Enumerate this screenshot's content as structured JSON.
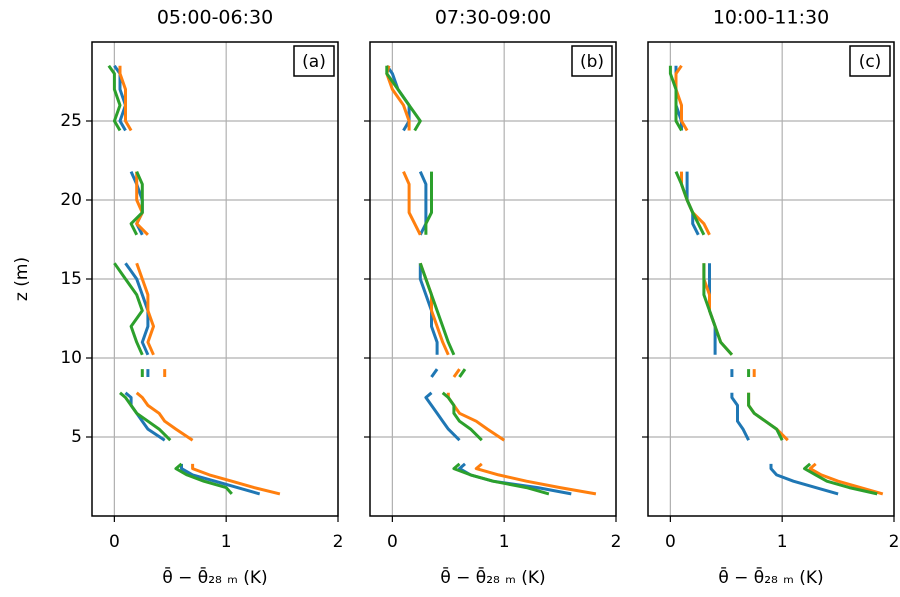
{
  "chart_data": [
    {
      "type": "line",
      "title": "05:00-06:30",
      "panel_label": "(a)",
      "xlabel": "θ̄ − θ̄₂₈ ₘ (K)",
      "ylabel": "z (m)",
      "xlim": [
        -0.2,
        2
      ],
      "xticks": [
        0,
        1,
        2
      ],
      "ylim": [
        0,
        30
      ],
      "yticks": [
        5,
        10,
        15,
        20,
        25
      ],
      "grid": true,
      "y": [
        1.4,
        1.8,
        2.2,
        2.6,
        3.0,
        3.3,
        null,
        4.8,
        5.5,
        6.0,
        6.5,
        7.0,
        7.5,
        7.8,
        null,
        8.8,
        9.3,
        null,
        10.2,
        11,
        12,
        13,
        14,
        15,
        16,
        null,
        17.8,
        18.5,
        19.2,
        20,
        21,
        21.8,
        null,
        24.4,
        25,
        26,
        27,
        28,
        28.5
      ],
      "series": [
        {
          "color": "#1f77b4",
          "values": [
            1.3,
            1.1,
            0.9,
            0.7,
            0.6,
            0.6,
            null,
            0.45,
            0.3,
            0.25,
            0.2,
            0.15,
            0.15,
            0.1,
            null,
            0.3,
            0.3,
            null,
            0.3,
            0.25,
            0.3,
            0.3,
            0.25,
            0.2,
            0.1,
            null,
            0.25,
            0.2,
            0.25,
            0.25,
            0.2,
            0.15,
            null,
            0.1,
            0.05,
            0.1,
            0.05,
            0.05,
            0.0
          ]
        },
        {
          "color": "#ff7f0e",
          "values": [
            1.48,
            1.25,
            1.05,
            0.85,
            0.7,
            0.7,
            null,
            0.7,
            0.55,
            0.45,
            0.4,
            0.3,
            0.25,
            0.2,
            null,
            0.45,
            0.45,
            null,
            0.35,
            0.3,
            0.35,
            0.3,
            0.3,
            0.25,
            0.2,
            null,
            0.3,
            0.2,
            0.25,
            0.2,
            0.2,
            0.2,
            null,
            0.15,
            0.1,
            0.1,
            0.1,
            0.05,
            0.05
          ]
        },
        {
          "color": "#2ca02c",
          "values": [
            1.05,
            1.0,
            0.8,
            0.65,
            0.55,
            0.6,
            null,
            0.5,
            0.4,
            0.3,
            0.2,
            0.15,
            0.1,
            0.05,
            null,
            0.25,
            0.25,
            null,
            0.25,
            0.2,
            0.15,
            0.25,
            0.2,
            0.1,
            0.0,
            null,
            0.2,
            0.15,
            0.25,
            0.25,
            0.25,
            0.2,
            null,
            0.05,
            0.0,
            0.05,
            0.0,
            0.0,
            -0.05
          ]
        }
      ]
    },
    {
      "type": "line",
      "title": "07:30-09:00",
      "panel_label": "(b)",
      "xlabel": "θ̄ − θ̄₂₈ ₘ (K)",
      "xlim": [
        -0.2,
        2
      ],
      "xticks": [
        0,
        1,
        2
      ],
      "ylim": [
        0,
        30
      ],
      "yticks": [
        5,
        10,
        15,
        20,
        25
      ],
      "grid": true,
      "y": [
        1.4,
        1.8,
        2.2,
        2.6,
        3.0,
        3.3,
        null,
        4.8,
        5.5,
        6.0,
        6.5,
        7.0,
        7.5,
        7.8,
        null,
        8.8,
        9.3,
        null,
        10.2,
        11,
        12,
        13,
        14,
        15,
        16,
        null,
        17.8,
        18.5,
        19.2,
        20,
        21,
        21.8,
        null,
        24.4,
        25,
        26,
        27,
        28,
        28.5
      ],
      "series": [
        {
          "color": "#1f77b4",
          "values": [
            1.6,
            1.3,
            0.9,
            0.7,
            0.6,
            0.65,
            null,
            0.6,
            0.5,
            0.45,
            0.4,
            0.35,
            0.3,
            0.35,
            null,
            0.35,
            0.4,
            null,
            0.4,
            0.4,
            0.35,
            0.35,
            0.3,
            0.25,
            0.25,
            null,
            0.25,
            0.3,
            0.3,
            0.3,
            0.3,
            0.25,
            null,
            0.1,
            0.15,
            0.15,
            0.05,
            0.0,
            -0.05
          ]
        },
        {
          "color": "#ff7f0e",
          "values": [
            1.82,
            1.5,
            1.2,
            0.95,
            0.75,
            0.8,
            null,
            1.0,
            0.85,
            0.75,
            0.6,
            0.55,
            0.5,
            0.5,
            null,
            0.55,
            0.6,
            null,
            0.5,
            0.45,
            0.4,
            0.35,
            0.35,
            0.3,
            0.25,
            null,
            0.25,
            0.2,
            0.15,
            0.15,
            0.15,
            0.1,
            null,
            0.15,
            0.15,
            0.1,
            0.0,
            -0.05,
            -0.03
          ]
        },
        {
          "color": "#2ca02c",
          "values": [
            1.4,
            1.2,
            0.9,
            0.7,
            0.55,
            0.6,
            null,
            0.8,
            0.7,
            0.6,
            0.55,
            0.55,
            0.5,
            0.45,
            null,
            0.6,
            0.65,
            null,
            0.55,
            0.5,
            0.45,
            0.4,
            0.35,
            0.3,
            0.25,
            null,
            0.3,
            0.3,
            0.35,
            0.35,
            0.35,
            0.35,
            null,
            0.2,
            0.25,
            0.15,
            0.05,
            -0.05,
            -0.05
          ]
        }
      ]
    },
    {
      "type": "line",
      "title": "10:00-11:30",
      "panel_label": "(c)",
      "xlabel": "θ̄ − θ̄₂₈ ₘ (K)",
      "xlim": [
        -0.2,
        2
      ],
      "xticks": [
        0,
        1,
        2
      ],
      "ylim": [
        0,
        30
      ],
      "yticks": [
        5,
        10,
        15,
        20,
        25
      ],
      "grid": true,
      "y": [
        1.4,
        1.8,
        2.2,
        2.6,
        3.0,
        3.3,
        null,
        4.8,
        5.5,
        6.0,
        6.5,
        7.0,
        7.5,
        7.8,
        null,
        8.8,
        9.3,
        null,
        10.2,
        11,
        12,
        13,
        14,
        15,
        16,
        null,
        17.8,
        18.5,
        19.2,
        20,
        21,
        21.8,
        null,
        24.4,
        25,
        26,
        27,
        28,
        28.5
      ],
      "series": [
        {
          "color": "#1f77b4",
          "values": [
            1.5,
            1.3,
            1.1,
            0.95,
            0.9,
            0.9,
            null,
            0.7,
            0.65,
            0.6,
            0.6,
            0.6,
            0.55,
            0.55,
            null,
            0.55,
            0.55,
            null,
            0.4,
            0.4,
            0.4,
            0.35,
            0.35,
            0.35,
            0.35,
            null,
            0.25,
            0.2,
            0.2,
            0.15,
            0.15,
            0.15,
            null,
            0.1,
            0.1,
            0.05,
            0.05,
            0.05,
            0.05
          ]
        },
        {
          "color": "#ff7f0e",
          "values": [
            1.9,
            1.7,
            1.5,
            1.35,
            1.25,
            1.3,
            null,
            1.05,
            0.95,
            0.85,
            0.75,
            0.7,
            0.7,
            0.7,
            null,
            0.75,
            0.75,
            null,
            0.55,
            0.45,
            0.4,
            0.35,
            0.35,
            0.3,
            0.3,
            null,
            0.35,
            0.3,
            0.2,
            0.15,
            0.1,
            0.1,
            null,
            0.15,
            0.1,
            0.1,
            0.05,
            0.05,
            0.1
          ]
        },
        {
          "color": "#2ca02c",
          "values": [
            1.85,
            1.6,
            1.4,
            1.3,
            1.2,
            1.25,
            null,
            1.0,
            0.95,
            0.85,
            0.75,
            0.7,
            0.7,
            0.7,
            null,
            0.7,
            0.7,
            null,
            0.55,
            0.45,
            0.4,
            0.35,
            0.3,
            0.3,
            0.3,
            null,
            0.3,
            0.25,
            0.2,
            0.15,
            0.1,
            0.05,
            null,
            0.1,
            0.05,
            0.05,
            0.05,
            0.0,
            0.0
          ]
        }
      ]
    }
  ]
}
